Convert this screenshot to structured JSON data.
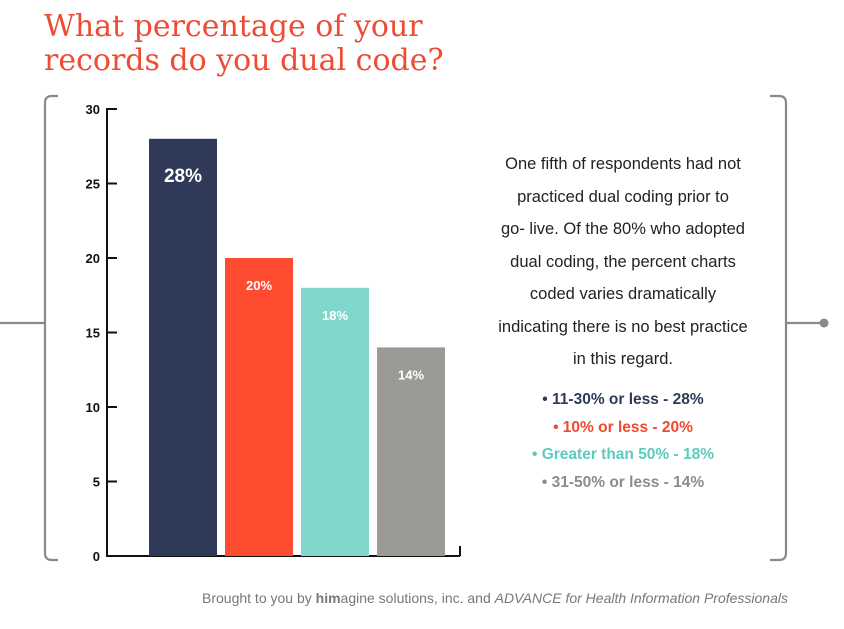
{
  "title": {
    "line1": "What percentage of your",
    "line2": "records do you dual code?"
  },
  "description": [
    "One fifth of respondents had not",
    "practiced dual coding prior to",
    "go- live. Of the 80% who adopted",
    "dual coding, the percent charts",
    "coded varies dramatically",
    "indicating there is no best practice",
    "in this regard."
  ],
  "legend": [
    {
      "text": "• 11-30% or less - 28%",
      "color": "#2e3a57"
    },
    {
      "text": "• 10% or less - 20%",
      "color": "#f04a2e"
    },
    {
      "text": "• Greater than 50% - 18%",
      "color": "#5ccbbf"
    },
    {
      "text": "• 31-50% or less - 14%",
      "color": "#8e8c8a"
    }
  ],
  "footer": {
    "prefix": "Brought to you by ",
    "brand_bold": "him",
    "brand_rest": "agine solutions, inc. and ",
    "publication_italic": "ADVANCE for Health Information Professionals"
  },
  "colors": {
    "title": "#ee4b34",
    "frame": "#8a8a8a"
  },
  "chart_data": {
    "type": "bar",
    "title": "What percentage of your records do you dual code?",
    "categories": [
      "11-30% or less",
      "10% or less",
      "Greater than 50%",
      "31-50% or less"
    ],
    "values": [
      28,
      20,
      18,
      14
    ],
    "data_labels": [
      "28%",
      "20%",
      "18%",
      "14%"
    ],
    "colors": [
      "#2e3a57",
      "#ff4b2f",
      "#7fd8cb",
      "#9c9a97"
    ],
    "yticks": [
      0,
      5,
      10,
      15,
      20,
      25,
      30
    ],
    "ylim": [
      0,
      30
    ],
    "grid": false,
    "xlabel": "",
    "ylabel": ""
  }
}
